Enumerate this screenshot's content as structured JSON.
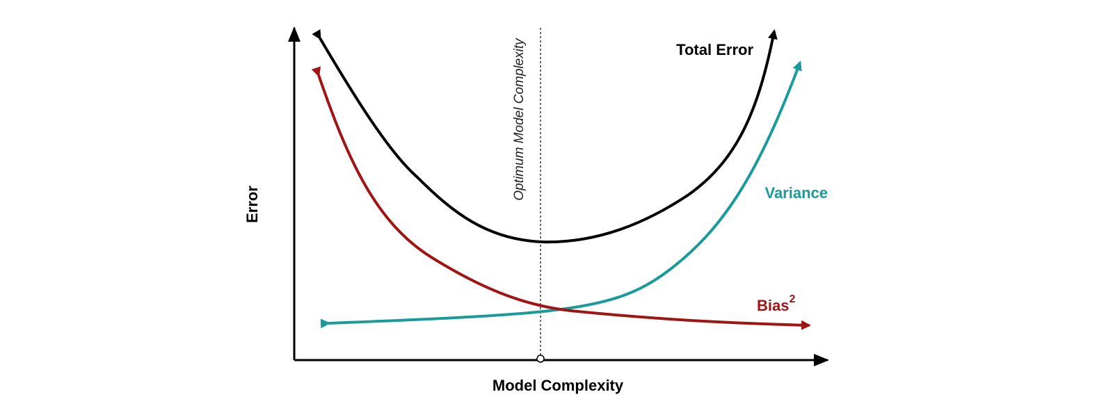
{
  "diagram": {
    "x_axis_label": "Model Complexity",
    "y_axis_label": "Error",
    "optimum_label": "Optimum Model Complexity",
    "curves": {
      "total_error": {
        "label": "Total Error",
        "color": "#000000"
      },
      "variance": {
        "label": "Variance",
        "color": "#1a9a9a"
      },
      "bias": {
        "label": "Bias",
        "superscript": "2",
        "color": "#a01414"
      }
    }
  }
}
